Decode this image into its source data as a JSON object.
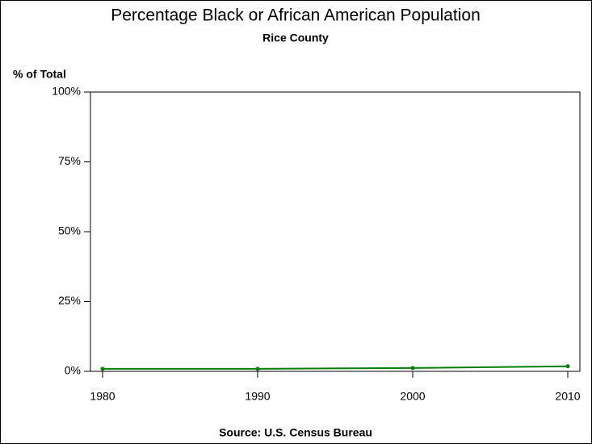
{
  "chart_data": {
    "type": "line",
    "title": "Percentage Black or African American Population",
    "subtitle": "Rice County",
    "y_label": "% of Total",
    "source": "Source: U.S. Census Bureau",
    "x": [
      1980,
      1990,
      2000,
      2010
    ],
    "series": [
      {
        "name": "Rice County",
        "color": "#008000",
        "values": [
          0.9,
          0.9,
          1.2,
          1.8
        ]
      }
    ],
    "xlim": [
      1980,
      2010
    ],
    "xticks": [
      1980,
      1990,
      2000,
      2010
    ],
    "ylim": [
      0,
      100
    ],
    "yticks": [
      {
        "value": 0,
        "label": "0%"
      },
      {
        "value": 25,
        "label": "25%"
      },
      {
        "value": 50,
        "label": "50%"
      },
      {
        "value": 75,
        "label": "75%"
      },
      {
        "value": 100,
        "label": "100%"
      }
    ]
  }
}
